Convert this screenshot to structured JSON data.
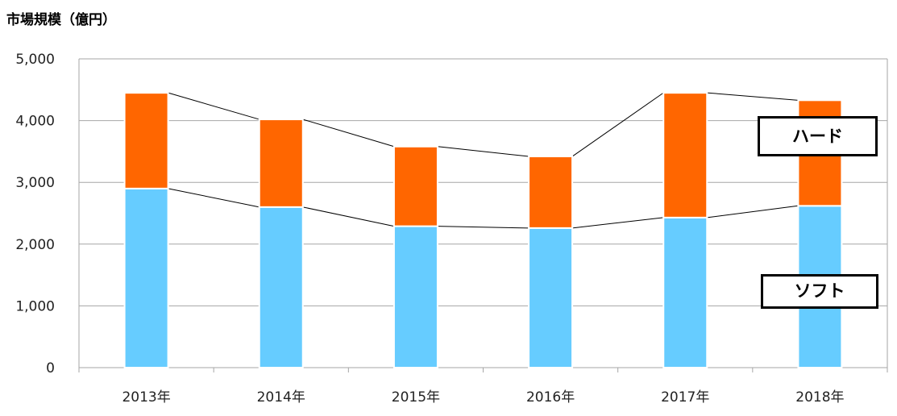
{
  "chart_data": {
    "type": "bar",
    "stacked": true,
    "ylabel": "市場規模（億円）",
    "categories": [
      "2013年",
      "2014年",
      "2015年",
      "2016年",
      "2017年",
      "2018年"
    ],
    "series": [
      {
        "name": "ソフト",
        "color": "#66CCFF",
        "values": [
          2900,
          2600,
          2290,
          2260,
          2430,
          2620
        ]
      },
      {
        "name": "ハード",
        "color": "#FF6600",
        "values": [
          1550,
          1420,
          1290,
          1160,
          2020,
          1710
        ]
      }
    ],
    "ylim": [
      0,
      5000
    ],
    "yticks": [
      "0",
      "1,000",
      "2,000",
      "3,000",
      "4,000",
      "5,000"
    ],
    "ytick_values": [
      0,
      1000,
      2000,
      3000,
      4000,
      5000
    ],
    "grid": true,
    "connector_lines": true
  }
}
